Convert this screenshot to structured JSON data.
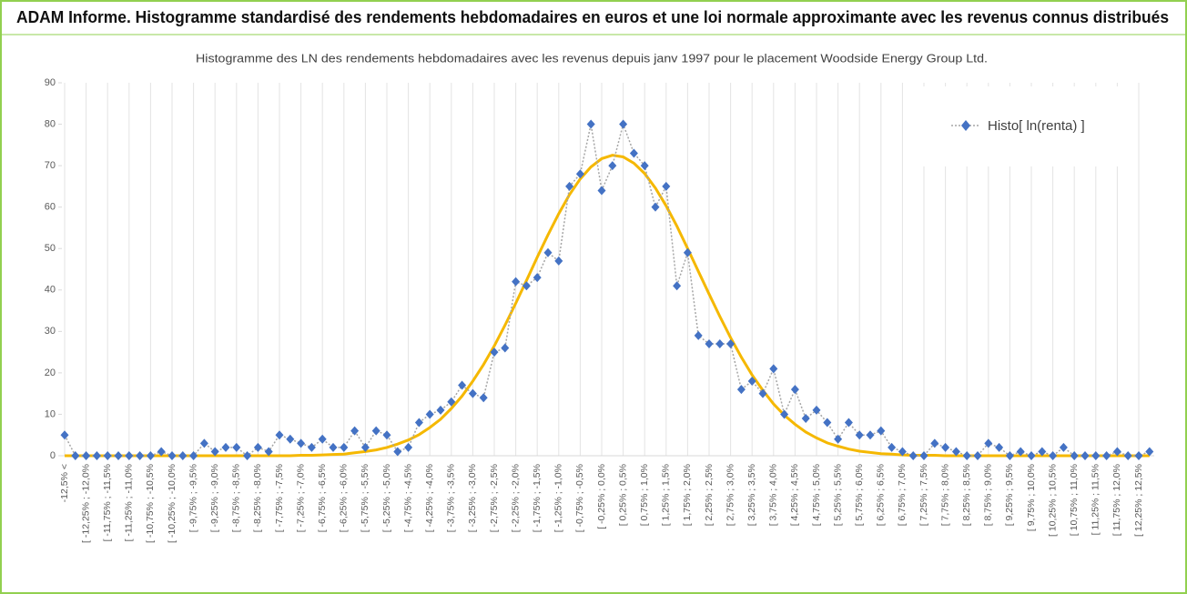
{
  "chart_data": {
    "type": "line",
    "title": "ADAM Informe. Histogramme standardisé des rendements hebdomadaires en euros et une loi normale approximante avec les revenus connus distribués",
    "subtitle": "Histogramme des LN des rendements hebdomadaires avec les revenus depuis janv 1997 pour le placement Woodside Energy Group Ltd.",
    "categories": [
      "-12,5% <",
      null,
      "[ -12,25% ; -12,0%",
      null,
      "[ -11,75% ; -11,5%",
      null,
      "[ -11,25% ; -11,0%",
      null,
      "[ -10,75% ; -10,5%",
      null,
      "[ -10,25% ; -10,0%",
      null,
      "[ -9,75% ; -9,5%",
      null,
      "[ -9,25% ; -9,0%",
      null,
      "[ -8,75% ; -8,5%",
      null,
      "[ -8,25% ; -8,0%",
      null,
      "[ -7,75% ; -7,5%",
      null,
      "[ -7,25% ; -7,0%",
      null,
      "[ -6,75% ; -6,5%",
      null,
      "[ -6,25% ; -6,0%",
      null,
      "[ -5,75% ; -5,5%",
      null,
      "[ -5,25% ; -5,0%",
      null,
      "[ -4,75% ; -4,5%",
      null,
      "[ -4,25% ; -4,0%",
      null,
      "[ -3,75% ; -3,5%",
      null,
      "[ -3,25% ; -3,0%",
      null,
      "[ -2,75% ; -2,5%",
      null,
      "[ -2,25% ; -2,0%",
      null,
      "[ -1,75% ; -1,5%",
      null,
      "[ -1,25% ; -1,0%",
      null,
      "[ -0,75% ; -0,5%",
      null,
      "[ -0,25% ; 0,0%",
      null,
      "[ 0,25% ; 0,5%",
      null,
      "[ 0,75% ; 1,0%",
      null,
      "[ 1,25% ; 1,5%",
      null,
      "[ 1,75% ; 2,0%",
      null,
      "[ 2,25% ; 2,5%",
      null,
      "[ 2,75% ; 3,0%",
      null,
      "[ 3,25% ; 3,5%",
      null,
      "[ 3,75% ; 4,0%",
      null,
      "[ 4,25% ; 4,5%",
      null,
      "[ 4,75% ; 5,0%",
      null,
      "[ 5,25% ; 5,5%",
      null,
      "[ 5,75% ; 6,0%",
      null,
      "[ 6,25% ; 6,5%",
      null,
      "[ 6,75% ; 7,0%",
      null,
      "[ 7,25% ; 7,5%",
      null,
      "[ 7,75% ; 8,0%",
      null,
      "[ 8,25% ; 8,5%",
      null,
      "[ 8,75% ; 9,0%",
      null,
      "[ 9,25% ; 9,5%",
      null,
      "[ 9,75% ; 10,0%",
      null,
      "[ 10,25% ; 10,5%",
      null,
      "[ 10,75% ; 11,0%",
      null,
      "[ 11,25% ; 11,5%",
      null,
      "[ 11,75% ; 12,0%",
      null,
      "[ 12,25% ; 12,5%",
      null
    ],
    "series": [
      {
        "name": "Histo[ ln(renta) ]",
        "color": "#4472c4",
        "line_color": "#a5a5a5",
        "values": [
          5,
          0,
          0,
          0,
          0,
          0,
          0,
          0,
          0,
          1,
          0,
          0,
          0,
          3,
          1,
          2,
          2,
          0,
          2,
          1,
          5,
          4,
          3,
          2,
          4,
          2,
          2,
          6,
          2,
          6,
          5,
          1,
          2,
          8,
          10,
          11,
          13,
          17,
          15,
          14,
          25,
          26,
          42,
          41,
          43,
          49,
          47,
          65,
          68,
          80,
          64,
          70,
          80,
          73,
          70,
          60,
          65,
          41,
          49,
          29,
          27,
          27,
          27,
          16,
          18,
          15,
          21,
          10,
          16,
          9,
          11,
          8,
          4,
          8,
          5,
          5,
          6,
          2,
          1,
          0,
          0,
          3,
          2,
          1,
          0,
          0,
          3,
          2,
          0,
          1,
          0,
          1,
          0,
          2,
          0,
          0,
          0,
          0,
          1,
          0,
          0,
          1
        ]
      },
      {
        "color": "#f5b800",
        "values": [
          0,
          0,
          0,
          0,
          0,
          0,
          0,
          0,
          0,
          0,
          0,
          0,
          0,
          0,
          0,
          0,
          0,
          0,
          0,
          0,
          0,
          0,
          0.1,
          0.1,
          0.2,
          0.3,
          0.4,
          0.7,
          1.0,
          1.4,
          2.0,
          2.8,
          3.8,
          5.1,
          6.8,
          8.8,
          11.4,
          14.4,
          18.0,
          22.0,
          26.5,
          31.5,
          36.8,
          42.3,
          47.9,
          53.3,
          58.4,
          63.0,
          66.8,
          69.7,
          71.7,
          72.5,
          72.1,
          70.6,
          68.1,
          64.6,
          60.3,
          55.4,
          50.0,
          44.5,
          39.0,
          33.6,
          28.5,
          23.8,
          19.5,
          15.8,
          12.5,
          9.8,
          7.6,
          5.7,
          4.3,
          3.1,
          2.3,
          1.6,
          1.1,
          0.8,
          0.5,
          0.4,
          0.2,
          0.1,
          0.1,
          0.1,
          0,
          0,
          0,
          0,
          0,
          0,
          0,
          0,
          0,
          0,
          0,
          0,
          0,
          0,
          0,
          0,
          0,
          0,
          0,
          0
        ]
      }
    ],
    "ylim": [
      0,
      90
    ],
    "yticks": [
      0,
      10,
      20,
      30,
      40,
      50,
      60,
      70,
      80,
      90
    ],
    "grid": "x"
  }
}
